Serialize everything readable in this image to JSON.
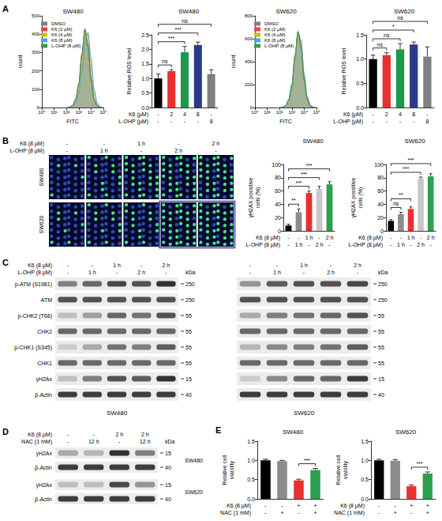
{
  "panel_letters": [
    "A",
    "B",
    "C",
    "D",
    "E"
  ],
  "chart_data": [
    {
      "type": "line",
      "title": "SW480",
      "x_label": "FITC",
      "y_label": "count",
      "log": "x",
      "grid": false,
      "legend": "top-left",
      "x": [
        100,
        178,
        316,
        562,
        1000,
        1778,
        3162,
        5623,
        10000,
        17783,
        31623,
        56234,
        100000
      ],
      "xlim": [
        1,
        100000
      ],
      "xticks": [
        {
          "value": 1,
          "label": "10⁰"
        },
        {
          "value": 10,
          "label": "10¹"
        },
        {
          "value": 100,
          "label": "10²"
        },
        {
          "value": 1000,
          "label": "10³"
        },
        {
          "value": 10000,
          "label": "10⁴"
        },
        {
          "value": 100000,
          "label": "10⁵"
        }
      ],
      "ylim": [
        0,
        500
      ],
      "yticks": [
        0,
        100,
        200,
        300,
        400,
        500
      ],
      "series": [
        {
          "name": "DMSO",
          "color": "#808080",
          "values": [
            0,
            3,
            12,
            45,
            130,
            290,
            420,
            330,
            150,
            40,
            8,
            1,
            0
          ]
        },
        {
          "name": "K6 (2 µM)",
          "color": "#e8483f",
          "values": [
            0,
            3,
            11,
            42,
            125,
            280,
            430,
            345,
            160,
            45,
            9,
            1,
            0
          ]
        },
        {
          "name": "K6 (4 µM)",
          "color": "#d9b21f",
          "values": [
            0,
            2,
            8,
            30,
            95,
            230,
            390,
            400,
            230,
            80,
            18,
            3,
            0
          ]
        },
        {
          "name": "K6 (8 µM)",
          "color": "#4aa8dc",
          "values": [
            0,
            2,
            6,
            24,
            80,
            200,
            360,
            410,
            270,
            100,
            25,
            4,
            0
          ]
        },
        {
          "name": "L-OHP (8 µM)",
          "color": "#3a9a4a",
          "values": [
            0,
            3,
            12,
            44,
            128,
            288,
            425,
            335,
            152,
            42,
            8,
            1,
            0
          ]
        }
      ]
    },
    {
      "type": "bar",
      "title": "SW480",
      "y_label": "Relative ROS level",
      "grid": false,
      "treatment_rows": [
        {
          "label": "K6 (µM)",
          "values": [
            "-",
            "2",
            "4",
            "8",
            "-"
          ]
        },
        {
          "label": "L-OHP (µM)",
          "values": [
            "-",
            "-",
            "-",
            "-",
            "8"
          ]
        }
      ],
      "values": [
        1.0,
        1.25,
        1.9,
        2.15,
        1.15
      ],
      "errors": [
        0.15,
        0.05,
        0.2,
        0.1,
        0.15
      ],
      "colors": [
        "#000000",
        "#e8312f",
        "#1a9a4b",
        "#2b3a8f",
        "#808080"
      ],
      "ylim": [
        0,
        2.5
      ],
      "yticks": [
        {
          "value": 0,
          "label": "0.0"
        },
        {
          "value": 0.5,
          "label": "0.5"
        },
        {
          "value": 1,
          "label": "1.0"
        },
        {
          "value": 1.5,
          "label": "1.5"
        },
        {
          "value": 2,
          "label": "2.0"
        },
        {
          "value": 2.5,
          "label": "2.5"
        }
      ],
      "comparisons": [
        {
          "from": 0,
          "to": 1,
          "label": "ns"
        },
        {
          "from": 0,
          "to": 2,
          "label": "***"
        },
        {
          "from": 0,
          "to": 3,
          "label": "***"
        },
        {
          "from": 0,
          "to": 4,
          "label": "ns"
        }
      ]
    },
    {
      "type": "line",
      "title": "SW620",
      "x_label": "FITC",
      "y_label": "count",
      "log": "x",
      "grid": false,
      "legend": "top-left",
      "x": [
        100,
        178,
        316,
        562,
        1000,
        1778,
        3162,
        5623,
        10000,
        17783,
        31623,
        56234,
        100000
      ],
      "xlim": [
        1,
        100000
      ],
      "xticks": [
        {
          "value": 1,
          "label": "10⁰"
        },
        {
          "value": 10,
          "label": "10¹"
        },
        {
          "value": 100,
          "label": "10²"
        },
        {
          "value": 1000,
          "label": "10³"
        },
        {
          "value": 10000,
          "label": "10⁴"
        },
        {
          "value": 100000,
          "label": "10⁵"
        }
      ],
      "ylim": [
        0,
        800
      ],
      "yticks": [
        0,
        200,
        400,
        600,
        800
      ],
      "series": [
        {
          "name": "DMSO",
          "color": "#808080",
          "values": [
            0,
            4,
            18,
            70,
            200,
            450,
            660,
            520,
            240,
            70,
            14,
            2,
            0
          ]
        },
        {
          "name": "K6 (2 µM)",
          "color": "#e8483f",
          "values": [
            0,
            4,
            17,
            66,
            190,
            440,
            665,
            540,
            255,
            76,
            16,
            2,
            0
          ]
        },
        {
          "name": "K6 (4 µM)",
          "color": "#d9b21f",
          "values": [
            0,
            3,
            15,
            60,
            175,
            420,
            660,
            570,
            280,
            90,
            20,
            3,
            0
          ]
        },
        {
          "name": "K6 (8 µM)",
          "color": "#4aa8dc",
          "values": [
            0,
            3,
            14,
            56,
            165,
            400,
            650,
            590,
            300,
            100,
            22,
            3,
            0
          ]
        },
        {
          "name": "L-OHP (8 µM)",
          "color": "#3a9a4a",
          "values": [
            0,
            4,
            18,
            68,
            198,
            448,
            662,
            525,
            244,
            72,
            15,
            2,
            0
          ]
        }
      ]
    },
    {
      "type": "bar",
      "title": "SW620",
      "y_label": "Relative ROS level",
      "grid": false,
      "treatment_rows": [
        {
          "label": "K6 (µM)",
          "values": [
            "-",
            "2",
            "4",
            "8",
            "-"
          ]
        },
        {
          "label": "L-OHP (µM)",
          "values": [
            "-",
            "-",
            "-",
            "-",
            "8"
          ]
        }
      ],
      "values": [
        1.0,
        1.08,
        1.2,
        1.3,
        1.05
      ],
      "errors": [
        0.08,
        0.05,
        0.12,
        0.05,
        0.2
      ],
      "colors": [
        "#000000",
        "#e8312f",
        "#1a9a4b",
        "#2b3a8f",
        "#808080"
      ],
      "ylim": [
        0,
        1.5
      ],
      "yticks": [
        {
          "value": 0,
          "label": "0.0"
        },
        {
          "value": 0.5,
          "label": "0.5"
        },
        {
          "value": 1,
          "label": "1.0"
        },
        {
          "value": 1.5,
          "label": "1.5"
        }
      ],
      "comparisons": [
        {
          "from": 0,
          "to": 1,
          "label": "ns"
        },
        {
          "from": 0,
          "to": 2,
          "label": "ns"
        },
        {
          "from": 0,
          "to": 3,
          "label": "*"
        },
        {
          "from": 0,
          "to": 4,
          "label": "ns"
        }
      ]
    },
    {
      "type": "bar",
      "title": "SW480",
      "y_label": "γH2AX possitive cells (%)",
      "grid": false,
      "treatment_rows": [
        {
          "label": "K6 (8 µM)",
          "values": [
            "-",
            "-",
            "1 h",
            "-",
            "2 h"
          ]
        },
        {
          "label": "L-OHP (8 µM)",
          "values": [
            "-",
            "1 h",
            "-",
            "2 h",
            "-"
          ]
        }
      ],
      "values": [
        8,
        28,
        57,
        63,
        70
      ],
      "errors": [
        2,
        5,
        3,
        4,
        4
      ],
      "colors": [
        "#000000",
        "#8c8c8c",
        "#e8312f",
        "#c8c8c8",
        "#2e9e4f"
      ],
      "ylim": [
        0,
        100
      ],
      "yticks": [
        0,
        20,
        40,
        60,
        80,
        100
      ],
      "comparisons": [
        {
          "from": 0,
          "to": 1,
          "label": "**"
        },
        {
          "from": 0,
          "to": 2,
          "label": "***"
        },
        {
          "from": 0,
          "to": 3,
          "label": "***"
        },
        {
          "from": 0,
          "to": 4,
          "label": "***"
        }
      ]
    },
    {
      "type": "bar",
      "title": "SW620",
      "y_label": "γH2AX possitive cells (%)",
      "grid": false,
      "treatment_rows": [
        {
          "label": "K6 (8 µM)",
          "values": [
            "-",
            "-",
            "1 h",
            "-",
            "2 h"
          ]
        },
        {
          "label": "L-OHP (8 µM)",
          "values": [
            "-",
            "1 h",
            "-",
            "2 h",
            "-"
          ]
        }
      ],
      "values": [
        15,
        25,
        33,
        79,
        82
      ],
      "errors": [
        2,
        3,
        3,
        2,
        4
      ],
      "colors": [
        "#000000",
        "#8c8c8c",
        "#e8312f",
        "#c8c8c8",
        "#2e9e4f"
      ],
      "ylim": [
        0,
        100
      ],
      "yticks": [
        0,
        20,
        40,
        60,
        80,
        100
      ],
      "comparisons": [
        {
          "from": 0,
          "to": 1,
          "label": "ns"
        },
        {
          "from": 0,
          "to": 2,
          "label": "**"
        },
        {
          "from": 0,
          "to": 3,
          "label": "***"
        },
        {
          "from": 0,
          "to": 4,
          "label": "***"
        }
      ]
    },
    {
      "type": "bar",
      "title": "SW480",
      "y_label": "Relative cell viability",
      "grid": false,
      "treatment_rows": [
        {
          "label": "K6 (8 µM)",
          "values": [
            "-",
            "-",
            "+",
            "+"
          ]
        },
        {
          "label": "NAC (1 mM)",
          "values": [
            "-",
            "+",
            "-",
            "+"
          ]
        }
      ],
      "values": [
        1.0,
        0.98,
        0.48,
        0.75
      ],
      "errors": [
        0.03,
        0.02,
        0.03,
        0.04
      ],
      "colors": [
        "#000000",
        "#8c8c8c",
        "#e8312f",
        "#2e9e4f"
      ],
      "ylim": [
        0,
        1.5
      ],
      "yticks": [
        {
          "value": 0,
          "label": "0.0"
        },
        {
          "value": 0.5,
          "label": "0.5"
        },
        {
          "value": 1,
          "label": "1.0"
        },
        {
          "value": 1.5,
          "label": "1.5"
        }
      ],
      "comparisons": [
        {
          "from": 2,
          "to": 3,
          "label": "***"
        }
      ]
    },
    {
      "type": "bar",
      "title": "SW620",
      "y_label": "Relative cell viability",
      "grid": false,
      "treatment_rows": [
        {
          "label": "K6 (8 µM)",
          "values": [
            "-",
            "-",
            "+",
            "+"
          ]
        },
        {
          "label": "NAC (1 mM)",
          "values": [
            "-",
            "+",
            "-",
            "+"
          ]
        }
      ],
      "values": [
        1.0,
        0.99,
        0.33,
        0.66
      ],
      "errors": [
        0.03,
        0.03,
        0.03,
        0.04
      ],
      "colors": [
        "#000000",
        "#8c8c8c",
        "#e8312f",
        "#2e9e4f"
      ],
      "ylim": [
        0,
        1.5
      ],
      "yticks": [
        {
          "value": 0,
          "label": "0.0"
        },
        {
          "value": 0.5,
          "label": "0.5"
        },
        {
          "value": 1,
          "label": "1.0"
        },
        {
          "value": 1.5,
          "label": "1.5"
        }
      ],
      "comparisons": [
        {
          "from": 2,
          "to": 3,
          "label": "***"
        }
      ]
    }
  ],
  "images_B": {
    "header_rows": [
      {
        "label": "K6 (8 µM)",
        "values": [
          "-",
          "-",
          "1 h",
          "-",
          "2 h"
        ]
      },
      {
        "label": "L-OHP (8 µM)",
        "values": [
          "-",
          "1 h",
          "-",
          "2 h",
          "-"
        ]
      }
    ],
    "rows": [
      "SW480",
      "SW620"
    ]
  },
  "blot_C": {
    "header_rows": [
      {
        "label": "K6 (8 µM)",
        "values": [
          "-",
          "-",
          "1 h",
          "-",
          "2 h"
        ]
      },
      {
        "label": "L-OHP (8 µM)",
        "values": [
          "-",
          "1 h",
          "-",
          "2 h",
          "-"
        ]
      }
    ],
    "rows": [
      "p-ATM (S1981)",
      "ATM",
      "p-CHK2 (T68)",
      "CHK2",
      "p-CHK1 (S345)",
      "CHK1",
      "γH2Ax",
      "β-Actin"
    ],
    "unit": "kDa",
    "blots": [
      {
        "cell": "SW480",
        "kda": [
          250,
          250,
          55,
          55,
          55,
          55,
          15,
          40
        ],
        "intensity": [
          [
            0.5,
            0.6,
            0.75,
            0.7,
            0.85
          ],
          [
            0.7,
            0.7,
            0.7,
            0.7,
            0.7
          ],
          [
            0.2,
            0.35,
            0.6,
            0.55,
            0.7
          ],
          [
            0.6,
            0.6,
            0.6,
            0.6,
            0.6
          ],
          [
            0.15,
            0.3,
            0.55,
            0.5,
            0.65
          ],
          [
            0.6,
            0.6,
            0.6,
            0.6,
            0.6
          ],
          [
            0.2,
            0.5,
            0.7,
            0.65,
            0.85
          ],
          [
            0.8,
            0.8,
            0.8,
            0.8,
            0.8
          ]
        ]
      },
      {
        "cell": "SW620",
        "kda": [
          250,
          250,
          55,
          55,
          55,
          55,
          15,
          40
        ],
        "intensity": [
          [
            0.4,
            0.65,
            0.7,
            0.7,
            0.75
          ],
          [
            0.7,
            0.7,
            0.7,
            0.7,
            0.7
          ],
          [
            0.3,
            0.5,
            0.55,
            0.6,
            0.7
          ],
          [
            0.6,
            0.6,
            0.6,
            0.6,
            0.6
          ],
          [
            0.25,
            0.45,
            0.5,
            0.55,
            0.65
          ],
          [
            0.6,
            0.6,
            0.6,
            0.6,
            0.6
          ],
          [
            0.15,
            0.45,
            0.6,
            0.6,
            0.8
          ],
          [
            0.8,
            0.8,
            0.8,
            0.8,
            0.8
          ]
        ]
      }
    ]
  },
  "blot_D": {
    "header_rows": [
      {
        "label": "K6 (8 µM)",
        "values": [
          "-",
          "-",
          "2 h",
          "2 h"
        ]
      },
      {
        "label": "NAC (1 mM)",
        "values": [
          "-",
          "12 h",
          "-",
          "12 h"
        ]
      }
    ],
    "unit": "kDa",
    "groups": [
      {
        "cell": "SW480",
        "rows": [
          {
            "label": "γH2Ax",
            "kda": 15,
            "intensity": [
              0.3,
              0.25,
              0.85,
              0.5
            ]
          },
          {
            "label": "β-Actin",
            "kda": 40,
            "intensity": [
              0.8,
              0.8,
              0.8,
              0.8
            ]
          }
        ]
      },
      {
        "cell": "SW620",
        "rows": [
          {
            "label": "γH2Ax",
            "kda": 15,
            "intensity": [
              0.2,
              0.2,
              0.75,
              0.4
            ]
          },
          {
            "label": "β-Actin",
            "kda": 40,
            "intensity": [
              0.8,
              0.8,
              0.8,
              0.8
            ]
          }
        ]
      }
    ]
  }
}
